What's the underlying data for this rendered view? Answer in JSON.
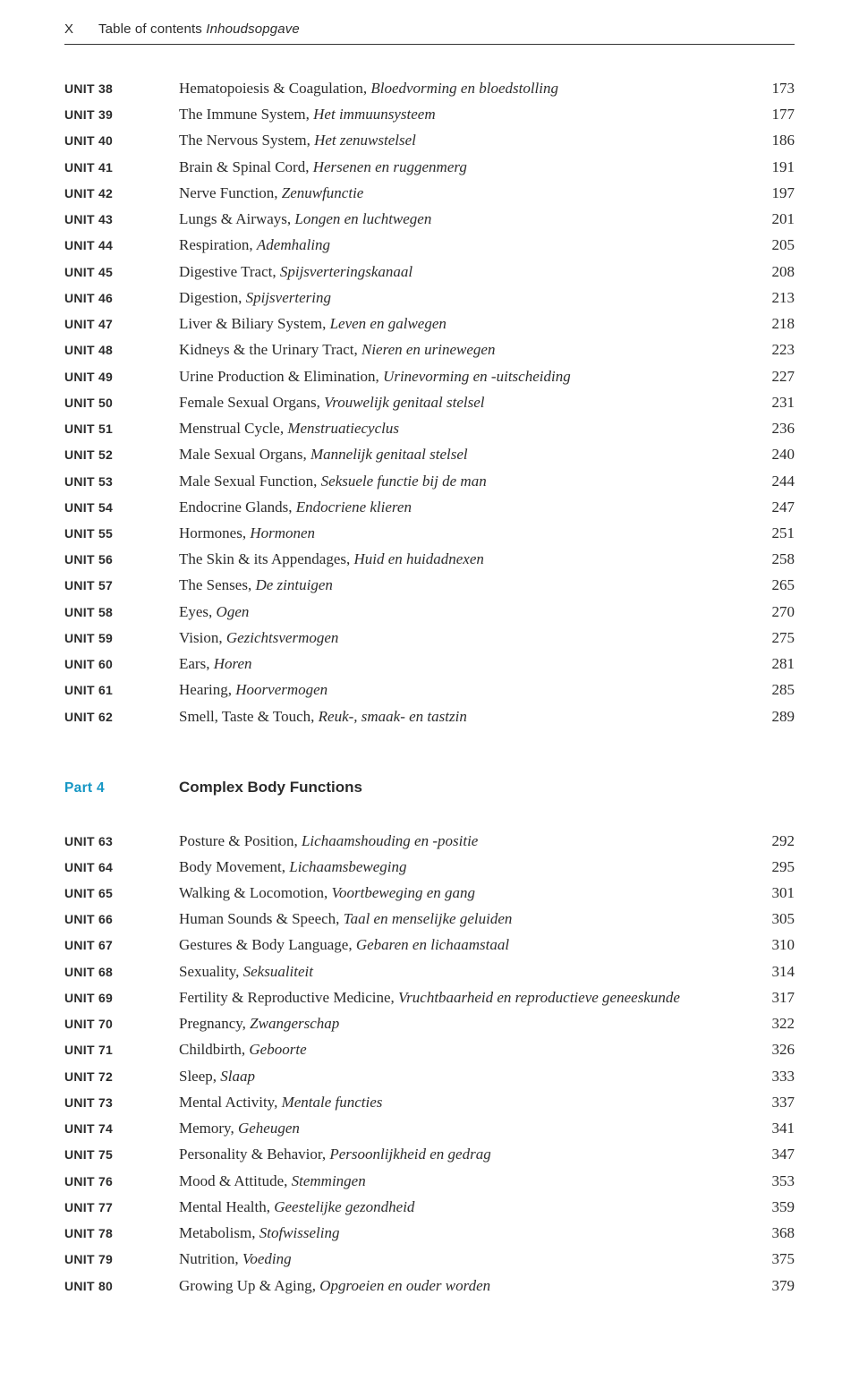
{
  "colors": {
    "text": "#2b2b2b",
    "accent": "#1596c4",
    "rule": "#333333",
    "background": "#ffffff"
  },
  "typography": {
    "body_family": "Georgia, Times New Roman, serif",
    "sans_family": "Helvetica Neue, Arial, sans-serif",
    "body_fontsize_pt": 12,
    "unit_fontsize_pt": 10,
    "line_height": 1.72
  },
  "header": {
    "page_marker": "X",
    "title_en": "Table of contents",
    "title_nl": "Inhoudsopgave"
  },
  "blocks": [
    {
      "type": "unit-list",
      "entries": [
        {
          "unit": "UNIT 38",
          "en": "Hematopoiesis & Coagulation, ",
          "nl": "Bloedvorming en bloedstolling",
          "page": "173"
        },
        {
          "unit": "UNIT 39",
          "en": "The Immune System, ",
          "nl": "Het immuunsysteem",
          "page": "177"
        },
        {
          "unit": "UNIT 40",
          "en": "The Nervous System, ",
          "nl": "Het zenuwstelsel",
          "page": "186"
        },
        {
          "unit": "UNIT 41",
          "en": "Brain & Spinal Cord, ",
          "nl": "Hersenen en ruggenmerg",
          "page": "191"
        },
        {
          "unit": "UNIT 42",
          "en": "Nerve Function, ",
          "nl": "Zenuwfunctie",
          "page": "197"
        },
        {
          "unit": "UNIT 43",
          "en": "Lungs & Airways, ",
          "nl": "Longen en luchtwegen",
          "page": "201"
        },
        {
          "unit": "UNIT 44",
          "en": "Respiration, ",
          "nl": "Ademhaling",
          "page": "205"
        },
        {
          "unit": "UNIT 45",
          "en": "Digestive Tract, ",
          "nl": "Spijsverteringskanaal",
          "page": "208"
        },
        {
          "unit": "UNIT 46",
          "en": "Digestion, ",
          "nl": "Spijsvertering",
          "page": "213"
        },
        {
          "unit": "UNIT 47",
          "en": "Liver & Biliary System, ",
          "nl": "Leven en galwegen",
          "page": "218"
        },
        {
          "unit": "UNIT 48",
          "en": "Kidneys & the Urinary Tract, ",
          "nl": "Nieren en urinewegen",
          "page": "223"
        },
        {
          "unit": "UNIT 49",
          "en": "Urine Production & Elimination, ",
          "nl": "Urinevorming en -uitscheiding",
          "page": "227"
        },
        {
          "unit": "UNIT 50",
          "en": "Female Sexual Organs, ",
          "nl": "Vrouwelijk genitaal stelsel",
          "page": "231"
        },
        {
          "unit": "UNIT 51",
          "en": "Menstrual Cycle, ",
          "nl": "Menstruatiecyclus",
          "page": "236"
        },
        {
          "unit": "UNIT 52",
          "en": "Male Sexual Organs, ",
          "nl": "Mannelijk genitaal stelsel",
          "page": "240"
        },
        {
          "unit": "UNIT 53",
          "en": "Male Sexual Function, ",
          "nl": "Seksuele functie bij de man",
          "page": "244"
        },
        {
          "unit": "UNIT 54",
          "en": "Endocrine Glands, ",
          "nl": "Endocriene klieren",
          "page": "247"
        },
        {
          "unit": "UNIT 55",
          "en": "Hormones, ",
          "nl": "Hormonen",
          "page": "251"
        },
        {
          "unit": "UNIT 56",
          "en": "The Skin & its Appendages, ",
          "nl": "Huid en huidadnexen",
          "page": "258"
        },
        {
          "unit": "UNIT 57",
          "en": "The Senses, ",
          "nl": "De zintuigen",
          "page": "265"
        },
        {
          "unit": "UNIT 58",
          "en": "Eyes, ",
          "nl": "Ogen",
          "page": "270"
        },
        {
          "unit": "UNIT 59",
          "en": "Vision, ",
          "nl": "Gezichtsvermogen",
          "page": "275"
        },
        {
          "unit": "UNIT 60",
          "en": "Ears, ",
          "nl": "Horen",
          "page": "281"
        },
        {
          "unit": "UNIT 61",
          "en": "Hearing, ",
          "nl": "Hoorvermogen",
          "page": "285"
        },
        {
          "unit": "UNIT 62",
          "en": "Smell, Taste & Touch, ",
          "nl": "Reuk-, smaak- en tastzin",
          "page": "289"
        }
      ]
    },
    {
      "type": "part-heading",
      "label": "Part 4",
      "title": "Complex Body Functions"
    },
    {
      "type": "unit-list",
      "entries": [
        {
          "unit": "UNIT 63",
          "en": "Posture & Position, ",
          "nl": "Lichaamshouding en -positie",
          "page": "292"
        },
        {
          "unit": "UNIT 64",
          "en": "Body Movement, ",
          "nl": "Lichaamsbeweging",
          "page": "295"
        },
        {
          "unit": "UNIT 65",
          "en": "Walking & Locomotion, ",
          "nl": "Voortbeweging en gang",
          "page": "301"
        },
        {
          "unit": "UNIT 66",
          "en": "Human Sounds & Speech, ",
          "nl": "Taal en menselijke geluiden",
          "page": "305"
        },
        {
          "unit": "UNIT 67",
          "en": "Gestures & Body Language, ",
          "nl": "Gebaren en lichaamstaal",
          "page": "310"
        },
        {
          "unit": "UNIT 68",
          "en": "Sexuality, ",
          "nl": "Seksualiteit",
          "page": "314"
        },
        {
          "unit": "UNIT 69",
          "en": "Fertility & Reproductive Medicine, ",
          "nl": "Vruchtbaarheid en reproductieve geneeskunde",
          "page": "317"
        },
        {
          "unit": "UNIT 70",
          "en": "Pregnancy, ",
          "nl": "Zwangerschap",
          "page": "322"
        },
        {
          "unit": "UNIT 71",
          "en": "Childbirth, ",
          "nl": "Geboorte",
          "page": "326"
        },
        {
          "unit": "UNIT 72",
          "en": "Sleep, ",
          "nl": "Slaap",
          "page": "333"
        },
        {
          "unit": "UNIT 73",
          "en": "Mental Activity, ",
          "nl": "Mentale functies",
          "page": "337"
        },
        {
          "unit": "UNIT 74",
          "en": "Memory, ",
          "nl": "Geheugen",
          "page": "341"
        },
        {
          "unit": "UNIT 75",
          "en": "Personality & Behavior, ",
          "nl": "Persoonlijkheid en gedrag",
          "page": "347"
        },
        {
          "unit": "UNIT 76",
          "en": "Mood & Attitude, ",
          "nl": "Stemmingen",
          "page": "353"
        },
        {
          "unit": "UNIT 77",
          "en": "Mental Health, ",
          "nl": "Geestelijke gezondheid",
          "page": "359"
        },
        {
          "unit": "UNIT 78",
          "en": "Metabolism, ",
          "nl": "Stofwisseling",
          "page": "368"
        },
        {
          "unit": "UNIT 79",
          "en": "Nutrition, ",
          "nl": "Voeding",
          "page": "375"
        },
        {
          "unit": "UNIT 80",
          "en": "Growing Up & Aging, ",
          "nl": "Opgroeien en ouder worden",
          "page": "379"
        }
      ]
    }
  ]
}
